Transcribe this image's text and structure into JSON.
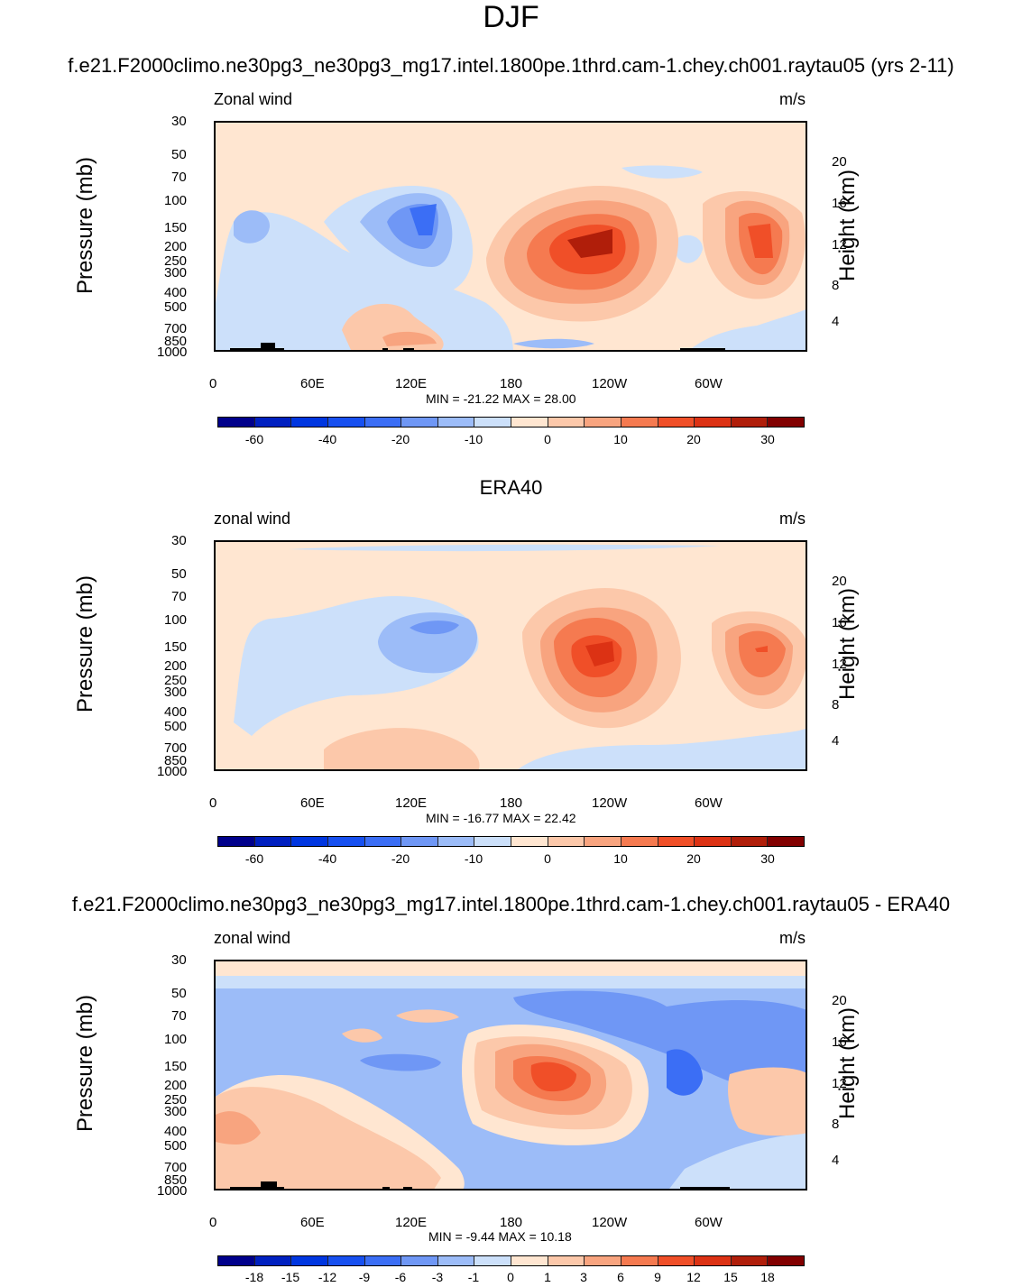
{
  "page": {
    "title": "DJF"
  },
  "colors": {
    "bg_near_zero_pos": "#ffe6d1",
    "palette": [
      "#00008b",
      "#0020c0",
      "#0036e0",
      "#1750f0",
      "#3b6ef5",
      "#6f97f5",
      "#9cbcf8",
      "#cce0fa",
      "#ffe6d1",
      "#fcc8aa",
      "#f8a47f",
      "#f57a50",
      "#f04f28",
      "#dc3214",
      "#b01e0a",
      "#820000"
    ]
  },
  "panels": [
    {
      "id": "model",
      "title": "f.e21.F2000climo.ne30pg3_ne30pg3_mg17.intel.1800pe.1thrd.cam-1.chey.ch001.raytau05 (yrs 2-11)",
      "left_label": "Zonal wind",
      "right_label": "m/s",
      "ylabel": "Pressure (mb)",
      "y2label": "Height (km)",
      "minmax": "MIN = -21.22  MAX =  28.00",
      "colorbar_labels": [
        "-60",
        "-40",
        "-20",
        "-10",
        "0",
        "10",
        "20",
        "30"
      ]
    },
    {
      "id": "obs",
      "title": "ERA40",
      "left_label": "zonal wind",
      "right_label": "m/s",
      "ylabel": "Pressure (mb)",
      "y2label": "Height (km)",
      "minmax": "MIN = -16.77  MAX =  22.42",
      "colorbar_labels": [
        "-60",
        "-40",
        "-20",
        "-10",
        "0",
        "10",
        "20",
        "30"
      ]
    },
    {
      "id": "diff",
      "title": "f.e21.F2000climo.ne30pg3_ne30pg3_mg17.intel.1800pe.1thrd.cam-1.chey.ch001.raytau05 - ERA40",
      "left_label": "zonal wind",
      "right_label": "m/s",
      "ylabel": "Pressure (mb)",
      "y2label": "Height (km)",
      "minmax": "MIN =  -9.44  MAX =  10.18",
      "colorbar_labels": [
        "-18",
        "-15",
        "-12",
        "-9",
        "-6",
        "-3",
        "-1",
        "0",
        "1",
        "3",
        "6",
        "9",
        "12",
        "15",
        "18"
      ]
    }
  ],
  "chart_data": [
    {
      "type": "heatmap",
      "title": "f.e21.F2000climo.ne30pg3_ne30pg3_mg17.intel.1800pe.1thrd.cam-1.chey.ch001.raytau05 (yrs 2-11)",
      "variable": "Zonal wind",
      "units": "m/s",
      "xlabel": "",
      "ylabel": "Pressure (mb)",
      "y2label": "Height (km)",
      "x_ticks": [
        "0",
        "60E",
        "120E",
        "180",
        "120W",
        "60W"
      ],
      "y_ticks": [
        "30",
        "50",
        "70",
        "100",
        "150",
        "200",
        "250",
        "300",
        "400",
        "500",
        "700",
        "850",
        "1000"
      ],
      "y2_ticks": [
        "20",
        "16",
        "12",
        "8",
        "4"
      ],
      "xlim": [
        0,
        360
      ],
      "ylim": [
        1000,
        30
      ],
      "min": -21.22,
      "max": 28.0,
      "levels": [
        -70,
        -60,
        -50,
        -40,
        -30,
        -20,
        -15,
        -10,
        -5,
        0,
        5,
        10,
        15,
        20,
        25,
        30,
        35
      ]
    },
    {
      "type": "heatmap",
      "title": "ERA40",
      "variable": "zonal wind",
      "units": "m/s",
      "xlabel": "",
      "ylabel": "Pressure (mb)",
      "y2label": "Height (km)",
      "x_ticks": [
        "0",
        "60E",
        "120E",
        "180",
        "120W",
        "60W"
      ],
      "y_ticks": [
        "30",
        "50",
        "70",
        "100",
        "150",
        "200",
        "250",
        "300",
        "400",
        "500",
        "700",
        "850",
        "1000"
      ],
      "y2_ticks": [
        "20",
        "16",
        "12",
        "8",
        "4"
      ],
      "xlim": [
        0,
        360
      ],
      "ylim": [
        1000,
        30
      ],
      "min": -16.77,
      "max": 22.42
    },
    {
      "type": "heatmap",
      "title": "f.e21.F2000climo.ne30pg3_ne30pg3_mg17.intel.1800pe.1thrd.cam-1.chey.ch001.raytau05 - ERA40",
      "variable": "zonal wind",
      "units": "m/s",
      "xlabel": "",
      "ylabel": "Pressure (mb)",
      "y2label": "Height (km)",
      "x_ticks": [
        "0",
        "60E",
        "120E",
        "180",
        "120W",
        "60W"
      ],
      "y_ticks": [
        "30",
        "50",
        "70",
        "100",
        "150",
        "200",
        "250",
        "300",
        "400",
        "500",
        "700",
        "850",
        "1000"
      ],
      "y2_ticks": [
        "20",
        "16",
        "12",
        "8",
        "4"
      ],
      "xlim": [
        0,
        360
      ],
      "ylim": [
        1000,
        30
      ],
      "min": -9.44,
      "max": 10.18,
      "levels": [
        -18,
        -15,
        -12,
        -9,
        -6,
        -3,
        -1,
        0,
        1,
        3,
        6,
        9,
        12,
        15,
        18
      ]
    }
  ]
}
